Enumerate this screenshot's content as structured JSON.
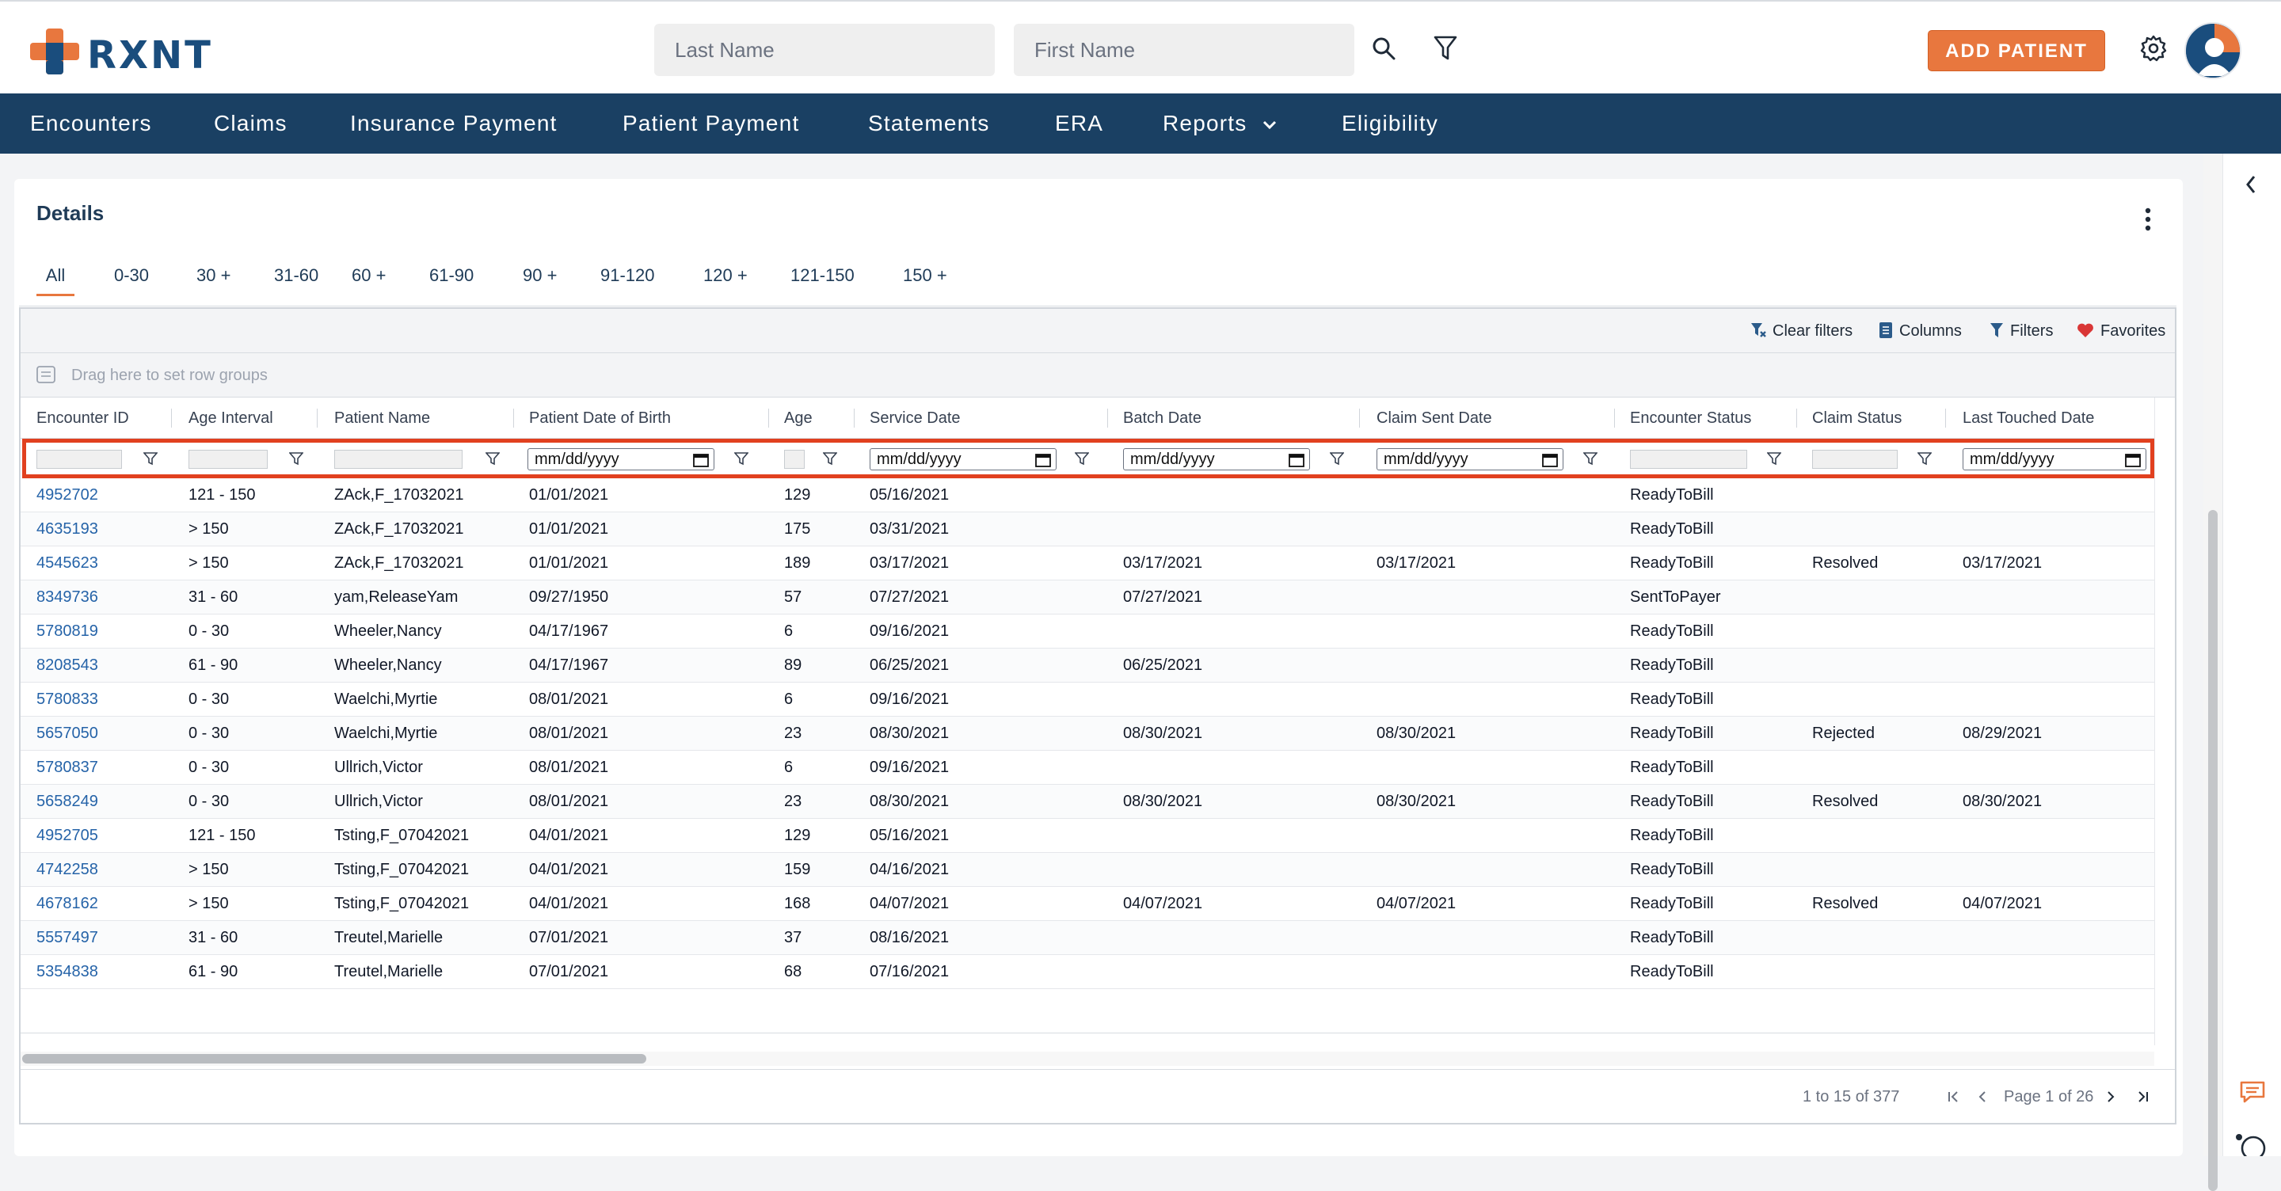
{
  "brand": {
    "name": "RXNT",
    "colors": {
      "orange": "#e8773e",
      "navy": "#1a4063",
      "link": "#2563a8"
    }
  },
  "topbar": {
    "last_name_placeholder": "Last Name",
    "first_name_placeholder": "First Name",
    "search_icon": "search-icon",
    "filter_icon": "filter-icon",
    "add_patient_label": "ADD PATIENT",
    "settings_icon": "gear-icon"
  },
  "nav": {
    "items": [
      "Encounters",
      "Claims",
      "Insurance Payment",
      "Patient Payment",
      "Statements",
      "ERA",
      "Reports",
      "Eligibility"
    ]
  },
  "details": {
    "title": "Details",
    "tabs": [
      "All",
      "0-30",
      "30 +",
      "31-60",
      "60 +",
      "61-90",
      "90 +",
      "91-120",
      "120 +",
      "121-150",
      "150 +"
    ],
    "active_tab": "All"
  },
  "toolbar": {
    "clear_filters": "Clear filters",
    "columns": "Columns",
    "filters": "Filters",
    "favorites": "Favorites",
    "row_groups_hint": "Drag here to set row groups"
  },
  "grid": {
    "columns": [
      "Encounter ID",
      "Age Interval",
      "Patient Name",
      "Patient Date of Birth",
      "Age",
      "Service Date",
      "Batch Date",
      "Claim Sent Date",
      "Encounter Status",
      "Claim Status",
      "Last Touched Date"
    ],
    "date_placeholder": "mm/dd/yyyy",
    "rows": [
      [
        "4952702",
        "121 - 150",
        "ZAck,F_17032021",
        "01/01/2021",
        "129",
        "05/16/2021",
        "",
        "",
        "ReadyToBill",
        "",
        ""
      ],
      [
        "4635193",
        "> 150",
        "ZAck,F_17032021",
        "01/01/2021",
        "175",
        "03/31/2021",
        "",
        "",
        "ReadyToBill",
        "",
        ""
      ],
      [
        "4545623",
        "> 150",
        "ZAck,F_17032021",
        "01/01/2021",
        "189",
        "03/17/2021",
        "03/17/2021",
        "03/17/2021",
        "ReadyToBill",
        "Resolved",
        "03/17/2021"
      ],
      [
        "8349736",
        "31 - 60",
        "yam,ReleaseYam",
        "09/27/1950",
        "57",
        "07/27/2021",
        "07/27/2021",
        "",
        "SentToPayer",
        "",
        ""
      ],
      [
        "5780819",
        "0 - 30",
        "Wheeler,Nancy",
        "04/17/1967",
        "6",
        "09/16/2021",
        "",
        "",
        "ReadyToBill",
        "",
        ""
      ],
      [
        "8208543",
        "61 - 90",
        "Wheeler,Nancy",
        "04/17/1967",
        "89",
        "06/25/2021",
        "06/25/2021",
        "",
        "ReadyToBill",
        "",
        ""
      ],
      [
        "5780833",
        "0 - 30",
        "Waelchi,Myrtie",
        "08/01/2021",
        "6",
        "09/16/2021",
        "",
        "",
        "ReadyToBill",
        "",
        ""
      ],
      [
        "5657050",
        "0 - 30",
        "Waelchi,Myrtie",
        "08/01/2021",
        "23",
        "08/30/2021",
        "08/30/2021",
        "08/30/2021",
        "ReadyToBill",
        "Rejected",
        "08/29/2021"
      ],
      [
        "5780837",
        "0 - 30",
        "Ullrich,Victor",
        "08/01/2021",
        "6",
        "09/16/2021",
        "",
        "",
        "ReadyToBill",
        "",
        ""
      ],
      [
        "5658249",
        "0 - 30",
        "Ullrich,Victor",
        "08/01/2021",
        "23",
        "08/30/2021",
        "08/30/2021",
        "08/30/2021",
        "ReadyToBill",
        "Resolved",
        "08/30/2021"
      ],
      [
        "4952705",
        "121 - 150",
        "Tsting,F_07042021",
        "04/01/2021",
        "129",
        "05/16/2021",
        "",
        "",
        "ReadyToBill",
        "",
        ""
      ],
      [
        "4742258",
        "> 150",
        "Tsting,F_07042021",
        "04/01/2021",
        "159",
        "04/16/2021",
        "",
        "",
        "ReadyToBill",
        "",
        ""
      ],
      [
        "4678162",
        "> 150",
        "Tsting,F_07042021",
        "04/01/2021",
        "168",
        "04/07/2021",
        "04/07/2021",
        "04/07/2021",
        "ReadyToBill",
        "Resolved",
        "04/07/2021"
      ],
      [
        "5557497",
        "31 - 60",
        "Treutel,Marielle",
        "07/01/2021",
        "37",
        "08/16/2021",
        "",
        "",
        "ReadyToBill",
        "",
        ""
      ],
      [
        "5354838",
        "61 - 90",
        "Treutel,Marielle",
        "07/01/2021",
        "68",
        "07/16/2021",
        "",
        "",
        "ReadyToBill",
        "",
        ""
      ]
    ]
  },
  "pager": {
    "range": "1 to 15 of 377",
    "page": "Page 1 of 26"
  }
}
